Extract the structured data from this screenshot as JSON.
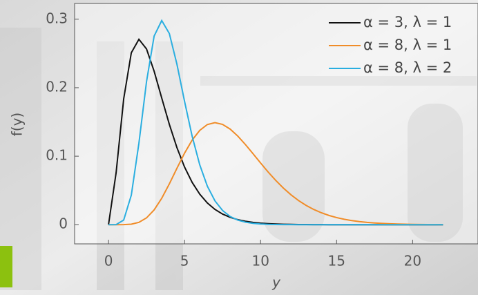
{
  "chart_data": {
    "type": "line",
    "x_label": "y",
    "y_label": "f(y)",
    "x": [
      0,
      0.5,
      1,
      1.5,
      2,
      2.5,
      3,
      3.5,
      4,
      4.5,
      5,
      5.5,
      6,
      6.5,
      7,
      7.5,
      8,
      8.5,
      9,
      9.5,
      10,
      10.5,
      11,
      11.5,
      12,
      12.5,
      13,
      13.5,
      14,
      14.5,
      15,
      15.5,
      16,
      16.5,
      17,
      17.5,
      18,
      18.5,
      19,
      19.5,
      20,
      20.5,
      21,
      21.5,
      22
    ],
    "series": [
      {
        "name": "α = 3, λ = 1",
        "color": "#111111",
        "values": [
          0,
          0.07582,
          0.18394,
          0.25102,
          0.27067,
          0.25652,
          0.22404,
          0.18496,
          0.14653,
          0.11248,
          0.08422,
          0.06181,
          0.04462,
          0.03176,
          0.02234,
          0.01556,
          0.01073,
          0.00735,
          0.005,
          0.00338,
          0.00227,
          0.00152,
          0.00101,
          0.00067,
          0.00044,
          0.00029,
          0.00019,
          0.00012,
          8e-05,
          5e-05,
          3e-05,
          2e-05,
          1e-05,
          1e-05,
          0,
          0,
          0,
          0,
          0,
          0,
          0,
          0,
          0,
          0,
          0
        ]
      },
      {
        "name": "α = 8, λ = 1",
        "color": "#f08c28",
        "values": [
          0,
          9e-07,
          7.3e-05,
          0.000756,
          0.003437,
          0.009941,
          0.021604,
          0.03855,
          0.05954,
          0.08236,
          0.10444,
          0.12345,
          0.13768,
          0.14623,
          0.149,
          0.14648,
          0.13959,
          0.12942,
          0.11712,
          0.10371,
          0.09008,
          0.07688,
          0.06458,
          0.05346,
          0.04368,
          0.03526,
          0.02814,
          0.02223,
          0.01739,
          0.01349,
          0.01037,
          0.00791,
          0.00599,
          0.00451,
          0.00337,
          0.0025,
          0.00185,
          0.00136,
          0.00099,
          0.00072,
          0.00052,
          0.00038,
          0.00027,
          0.0002,
          0.00014
        ]
      },
      {
        "name": "α = 8, λ = 2",
        "color": "#2aaee0",
        "values": [
          0,
          0.000146,
          0.006874,
          0.04321,
          0.11908,
          0.20888,
          0.27536,
          0.298,
          0.27918,
          0.23424,
          0.18016,
          0.12916,
          0.08736,
          0.05628,
          0.03478,
          0.02074,
          0.01198,
          0.00674,
          0.0037,
          0.00198,
          0.00104,
          0.00054,
          0.00028,
          0.00014,
          7e-05,
          3e-05,
          2e-05,
          1e-05,
          0,
          0,
          0,
          0,
          0,
          0,
          0,
          0,
          0,
          0,
          0,
          0,
          0,
          0,
          0,
          0,
          0
        ]
      }
    ],
    "xlim": [
      -2.23,
      24.3
    ],
    "ylim": [
      -0.028,
      0.323
    ],
    "xticks": [
      0,
      5,
      10,
      15,
      20
    ],
    "yticks": [
      0,
      0.1,
      0.2,
      0.3
    ],
    "legend": "upper right"
  }
}
